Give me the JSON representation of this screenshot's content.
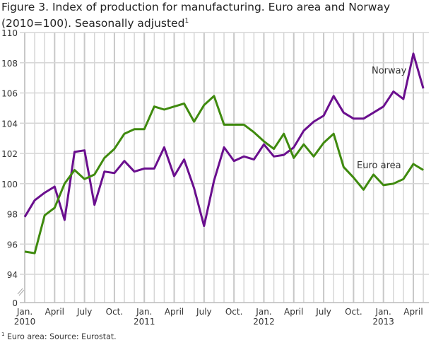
{
  "chart_data": {
    "type": "line",
    "title": "Figure 3. Index of production for manufacturing. Euro area and Norway (2010=100). Seasonally adjusted",
    "title_sup": "1",
    "footnote_sup": "1",
    "footnote": "Euro area: Source: Eurostat.",
    "y_ticks": [
      "0",
      "94",
      "96",
      "98",
      "100",
      "102",
      "104",
      "106",
      "108",
      "110"
    ],
    "ylim": [
      94,
      110
    ],
    "y_axis_break": true,
    "x_ticks": [
      {
        "label": "Jan.",
        "sub": "2010",
        "month": 0
      },
      {
        "label": "April",
        "sub": "",
        "month": 3
      },
      {
        "label": "July",
        "sub": "",
        "month": 6
      },
      {
        "label": "Oct.",
        "sub": "",
        "month": 9
      },
      {
        "label": "Jan.",
        "sub": "2011",
        "month": 12
      },
      {
        "label": "April",
        "sub": "",
        "month": 15
      },
      {
        "label": "July",
        "sub": "",
        "month": 18
      },
      {
        "label": "Oct.",
        "sub": "",
        "month": 21
      },
      {
        "label": "Jan.",
        "sub": "2012",
        "month": 24
      },
      {
        "label": "April",
        "sub": "",
        "month": 27
      },
      {
        "label": "July",
        "sub": "",
        "month": 30
      },
      {
        "label": "Oct.",
        "sub": "",
        "month": 33
      },
      {
        "label": "Jan.",
        "sub": "2013",
        "month": 36
      },
      {
        "label": "April",
        "sub": "",
        "month": 39
      }
    ],
    "x_range": [
      "2010-01",
      "2013-05"
    ],
    "grid": true,
    "series": [
      {
        "name": "Norway",
        "color": "#6a0f8e",
        "values": [
          97.8,
          98.9,
          99.4,
          99.8,
          97.6,
          102.1,
          102.2,
          98.6,
          100.8,
          100.7,
          101.5,
          100.8,
          101.0,
          101.0,
          102.4,
          100.5,
          101.6,
          99.7,
          97.2,
          100.2,
          102.4,
          101.5,
          101.8,
          101.6,
          102.6,
          101.8,
          101.9,
          102.4,
          103.5,
          104.1,
          104.5,
          105.8,
          104.7,
          104.3,
          104.3,
          104.7,
          105.1,
          106.1,
          105.6,
          108.6,
          106.3
        ]
      },
      {
        "name": "Euro area",
        "color": "#3f8a0e",
        "values": [
          95.5,
          95.4,
          97.9,
          98.4,
          100.0,
          100.9,
          100.3,
          100.6,
          101.7,
          102.3,
          103.3,
          103.6,
          103.6,
          105.1,
          104.9,
          105.1,
          105.3,
          104.1,
          105.2,
          105.8,
          103.9,
          103.9,
          103.9,
          103.4,
          102.8,
          102.3,
          103.3,
          101.7,
          102.6,
          101.8,
          102.7,
          103.3,
          101.1,
          100.4,
          99.6,
          100.6,
          99.9,
          100.0,
          100.3,
          101.3,
          100.9
        ]
      }
    ]
  }
}
